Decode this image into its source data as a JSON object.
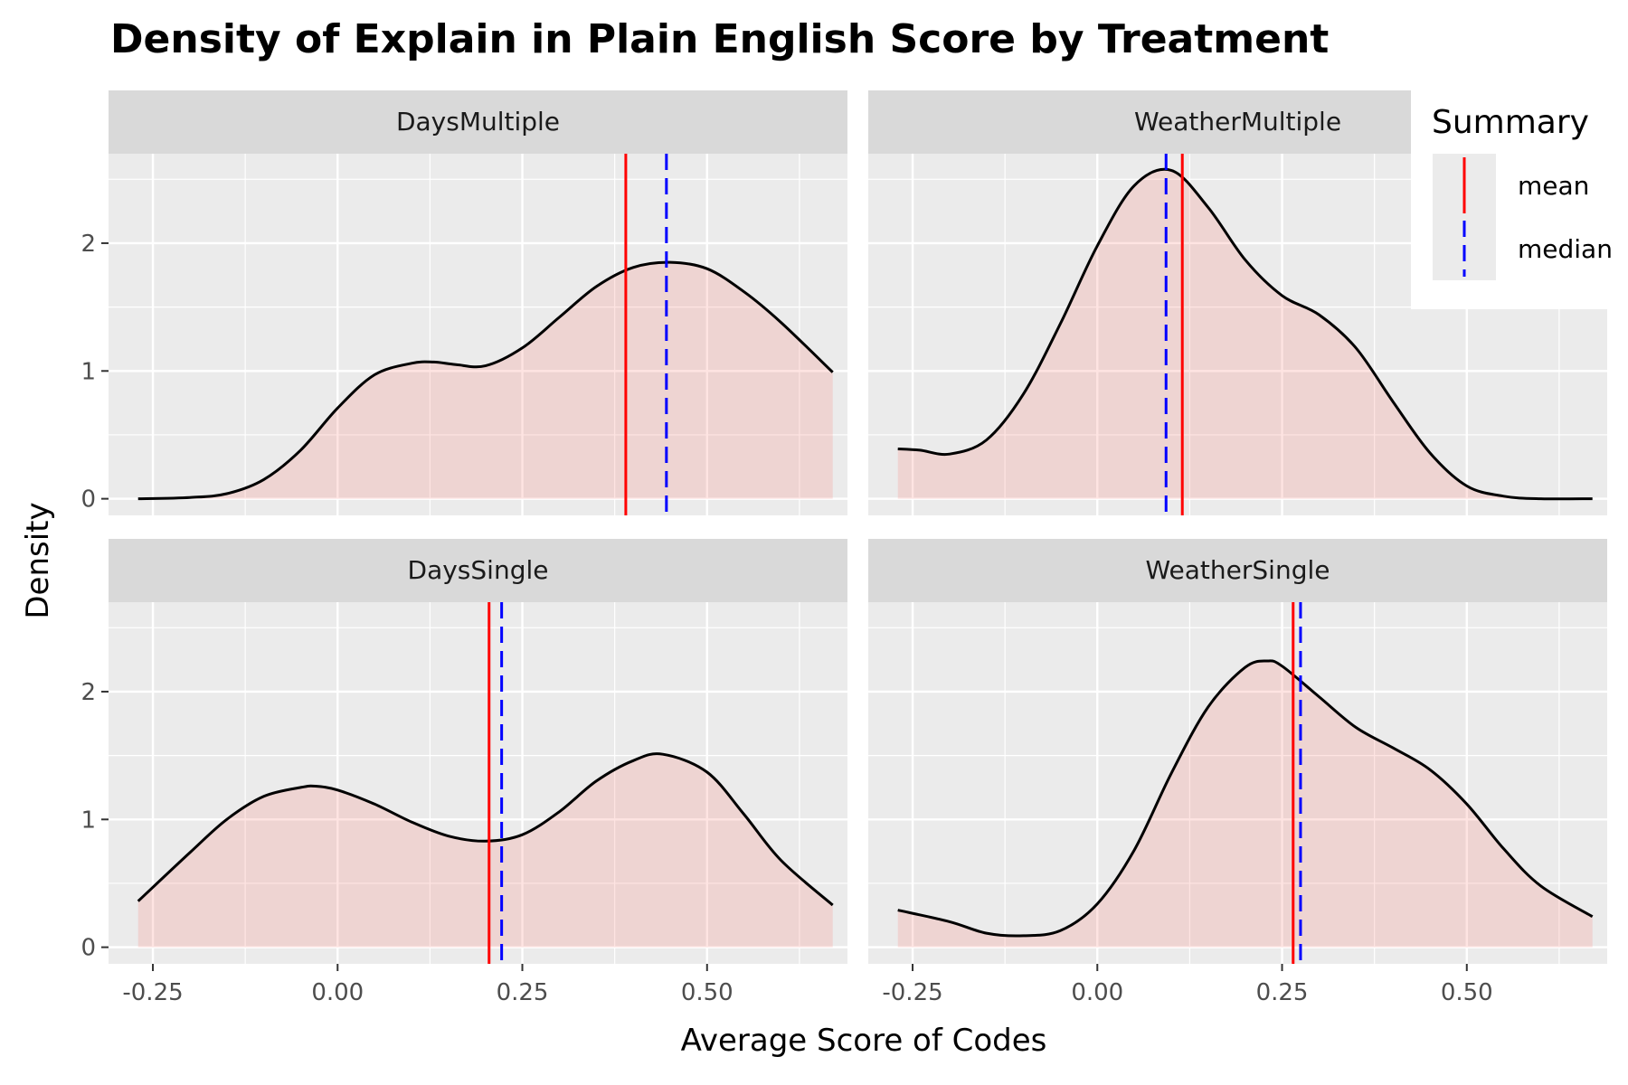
{
  "chart_data": {
    "type": "area",
    "title": "Density of Explain in Plain English Score by Treatment",
    "xlabel": "Average Score of Codes",
    "ylabel": "Density",
    "xlim": [
      -0.31,
      0.69
    ],
    "ylim": [
      -0.13,
      2.7
    ],
    "x_ticks": [
      -0.25,
      0.0,
      0.25,
      0.5
    ],
    "x_tick_labels": [
      "-0.25",
      "0.00",
      "0.25",
      "0.50"
    ],
    "y_ticks": [
      0,
      1,
      2
    ],
    "y_tick_labels": [
      "0",
      "1",
      "2"
    ],
    "fill_color": "#f8766d",
    "fill_opacity": 0.2,
    "mean_color": "#ff0000",
    "median_color": "#0000ff",
    "legend": {
      "title": "Summary",
      "placement": "right",
      "entries": [
        {
          "label": "mean",
          "style": "solid",
          "color": "#ff0000"
        },
        {
          "label": "median",
          "style": "dashed",
          "color": "#0000ff"
        }
      ]
    },
    "panels": [
      {
        "name": "DaysMultiple",
        "mean": 0.39,
        "median": 0.445,
        "x": [
          -0.27,
          -0.2,
          -0.15,
          -0.1,
          -0.05,
          0.0,
          0.05,
          0.1,
          0.13,
          0.16,
          0.2,
          0.25,
          0.3,
          0.35,
          0.4,
          0.45,
          0.5,
          0.55,
          0.6,
          0.67
        ],
        "y": [
          0.0,
          0.01,
          0.04,
          0.15,
          0.38,
          0.71,
          0.97,
          1.06,
          1.07,
          1.05,
          1.04,
          1.18,
          1.42,
          1.66,
          1.81,
          1.85,
          1.8,
          1.62,
          1.38,
          0.99
        ]
      },
      {
        "name": "WeatherMultiple",
        "mean": 0.115,
        "median": 0.093,
        "x": [
          -0.27,
          -0.24,
          -0.2,
          -0.15,
          -0.1,
          -0.05,
          0.0,
          0.05,
          0.1,
          0.15,
          0.2,
          0.25,
          0.3,
          0.35,
          0.4,
          0.45,
          0.5,
          0.55,
          0.6,
          0.67
        ],
        "y": [
          0.39,
          0.38,
          0.35,
          0.46,
          0.82,
          1.37,
          1.98,
          2.45,
          2.57,
          2.28,
          1.87,
          1.59,
          1.44,
          1.18,
          0.76,
          0.36,
          0.1,
          0.02,
          0.0,
          0.0
        ]
      },
      {
        "name": "DaysSingle",
        "mean": 0.205,
        "median": 0.222,
        "x": [
          -0.27,
          -0.2,
          -0.15,
          -0.1,
          -0.05,
          -0.03,
          0.0,
          0.05,
          0.1,
          0.15,
          0.2,
          0.25,
          0.3,
          0.35,
          0.4,
          0.44,
          0.5,
          0.55,
          0.6,
          0.67
        ],
        "y": [
          0.36,
          0.74,
          1.0,
          1.18,
          1.25,
          1.26,
          1.23,
          1.12,
          0.98,
          0.87,
          0.83,
          0.88,
          1.06,
          1.3,
          1.46,
          1.51,
          1.37,
          1.04,
          0.68,
          0.33
        ]
      },
      {
        "name": "WeatherSingle",
        "mean": 0.265,
        "median": 0.275,
        "x": [
          -0.27,
          -0.2,
          -0.15,
          -0.1,
          -0.05,
          0.0,
          0.05,
          0.1,
          0.15,
          0.2,
          0.23,
          0.25,
          0.3,
          0.35,
          0.4,
          0.45,
          0.5,
          0.55,
          0.6,
          0.67
        ],
        "y": [
          0.29,
          0.2,
          0.11,
          0.09,
          0.13,
          0.34,
          0.76,
          1.36,
          1.88,
          2.19,
          2.24,
          2.2,
          1.96,
          1.72,
          1.56,
          1.39,
          1.12,
          0.77,
          0.48,
          0.24
        ]
      }
    ]
  }
}
